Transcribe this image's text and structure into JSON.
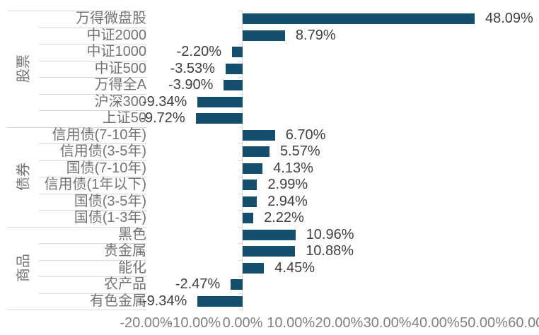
{
  "chart_data": {
    "type": "bar",
    "orientation": "horizontal",
    "unit": "%",
    "grid": false,
    "legend": false,
    "bar_color": "#14506E",
    "axis_line_color": "#D9D9D9",
    "category_label_color": "#737373",
    "group_label_color": "#737373",
    "value_label_color": "#404040",
    "tick_label_color": "#808080",
    "x_axis": {
      "min": -20,
      "max": 60,
      "step": 10,
      "tick_values": [
        -20,
        -10,
        0,
        10,
        20,
        30,
        40,
        50,
        60
      ],
      "tick_labels": [
        "-20.00%",
        "-10.00%",
        "0.00%",
        "10.00%",
        "20.00%",
        "30.00%",
        "40.00%",
        "50.00%",
        "60.00%"
      ]
    },
    "groups": [
      {
        "name": "股票",
        "items": [
          {
            "label": "万得微盘股",
            "value": 48.09,
            "display": "48.09%"
          },
          {
            "label": "中证2000",
            "value": 8.79,
            "display": "8.79%"
          },
          {
            "label": "中证1000",
            "value": -2.2,
            "display": "-2.20%"
          },
          {
            "label": "中证500",
            "value": -3.53,
            "display": "-3.53%"
          },
          {
            "label": "万得全A",
            "value": -3.9,
            "display": "-3.90%"
          },
          {
            "label": "沪深300",
            "value": -9.34,
            "display": "-9.34%"
          },
          {
            "label": "上证50",
            "value": -9.72,
            "display": "-9.72%"
          }
        ]
      },
      {
        "name": "债券",
        "items": [
          {
            "label": "信用债(7-10年)",
            "value": 6.7,
            "display": "6.70%"
          },
          {
            "label": "信用债(3-5年)",
            "value": 5.57,
            "display": "5.57%"
          },
          {
            "label": "国债(7-10年)",
            "value": 4.13,
            "display": "4.13%"
          },
          {
            "label": "信用债(1年以下)",
            "value": 2.99,
            "display": "2.99%"
          },
          {
            "label": "国债(3-5年)",
            "value": 2.94,
            "display": "2.94%"
          },
          {
            "label": "国债(1-3年)",
            "value": 2.22,
            "display": "2.22%"
          }
        ]
      },
      {
        "name": "商品",
        "items": [
          {
            "label": "黑色",
            "value": 10.96,
            "display": "10.96%"
          },
          {
            "label": "贵金属",
            "value": 10.88,
            "display": "10.88%"
          },
          {
            "label": "能化",
            "value": 4.45,
            "display": "4.45%"
          },
          {
            "label": "农产品",
            "value": -2.47,
            "display": "-2.47%"
          },
          {
            "label": "有色金属",
            "value": -9.34,
            "display": "-9.34%"
          }
        ]
      }
    ]
  }
}
